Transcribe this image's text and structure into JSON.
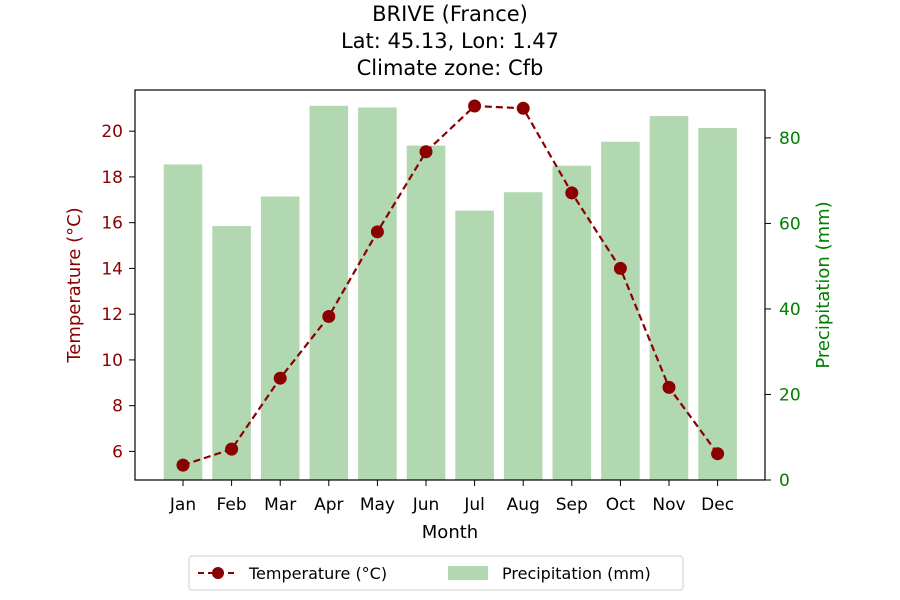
{
  "chart_data": {
    "type": "bar+line",
    "title_lines": [
      "BRIVE (France)",
      "Lat: 45.13, Lon: 1.47",
      "Climate zone: Cfb"
    ],
    "xlabel": "Month",
    "ylabel_left": "Temperature (°C)",
    "ylabel_right": "Precipitation (mm)",
    "categories": [
      "Jan",
      "Feb",
      "Mar",
      "Apr",
      "May",
      "Jun",
      "Jul",
      "Aug",
      "Sep",
      "Oct",
      "Nov",
      "Dec"
    ],
    "left_axis": {
      "ylim": [
        4.75,
        21.8
      ],
      "ticks": [
        6,
        8,
        10,
        12,
        14,
        16,
        18,
        20
      ],
      "color": "#8b0000"
    },
    "right_axis": {
      "ylim": [
        0,
        91.2
      ],
      "ticks": [
        0,
        20,
        40,
        60,
        80
      ],
      "color": "#008000"
    },
    "series": [
      {
        "name": "Temperature (°C)",
        "type": "line",
        "axis": "left",
        "style": "dashed",
        "marker": "circle",
        "color": "#8b0000",
        "values": [
          5.4,
          6.1,
          9.2,
          11.9,
          15.6,
          19.1,
          21.1,
          21.0,
          17.3,
          14.0,
          8.8,
          5.9
        ]
      },
      {
        "name": "Precipitation (mm)",
        "type": "bar",
        "axis": "right",
        "color": "#b2d8b2",
        "values": [
          73.8,
          59.4,
          66.3,
          87.5,
          87.1,
          78.2,
          63.0,
          67.3,
          73.5,
          79.1,
          85.1,
          82.3
        ]
      }
    ],
    "legend_position": "bottom-center",
    "grid": false
  }
}
